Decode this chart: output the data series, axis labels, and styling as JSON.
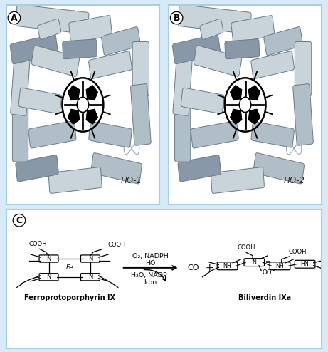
{
  "background_color": "#d6eaf8",
  "panel_bg": "#ffffff",
  "panel_border_color": "#a8cfe0",
  "panel_A_label": "A",
  "panel_B_label": "B",
  "panel_C_label": "C",
  "HO1_label": "HO-1",
  "HO2_label": "HO-2",
  "ferroproto_label": "Ferroprotoporphyrin IX",
  "biliverdin_label": "Biliverdin IXa",
  "reaction_line1": "O₂, NADPH",
  "reaction_line2": "HO",
  "reaction_line3": "H₂O, NADP⁺",
  "reaction_line4": "Iron",
  "co_label": "CO",
  "plus_label": "+",
  "text_color": "#000000"
}
